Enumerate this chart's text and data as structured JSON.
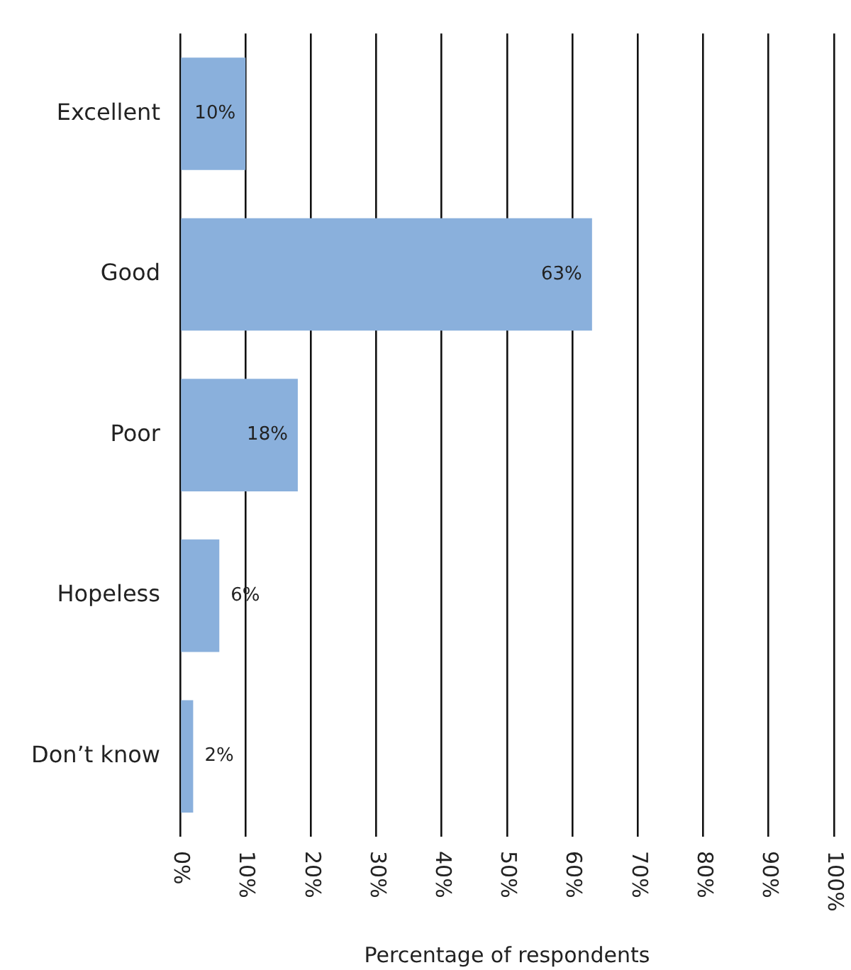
{
  "chart_data": {
    "type": "bar",
    "orientation": "horizontal",
    "xlabel": "Percentage of respondents",
    "categories": [
      "Excellent",
      "Good",
      "Poor",
      "Hopeless",
      "Don’t know"
    ],
    "values": [
      10,
      63,
      18,
      6,
      2
    ],
    "value_labels": [
      "10%",
      "63%",
      "18%",
      "6%",
      "2%"
    ],
    "color": "#8ab0dc",
    "xlim": [
      0,
      100
    ],
    "xticks": [
      {
        "value": 0,
        "label": "0%"
      },
      {
        "value": 10,
        "label": "10%"
      },
      {
        "value": 20,
        "label": "20%"
      },
      {
        "value": 30,
        "label": "30%"
      },
      {
        "value": 40,
        "label": "40%"
      },
      {
        "value": 50,
        "label": "50%"
      },
      {
        "value": 60,
        "label": "60%"
      },
      {
        "value": 70,
        "label": "70%"
      },
      {
        "value": 80,
        "label": "80%"
      },
      {
        "value": 90,
        "label": "90%"
      },
      {
        "value": 100,
        "label": "100%"
      }
    ],
    "grid": "x"
  }
}
